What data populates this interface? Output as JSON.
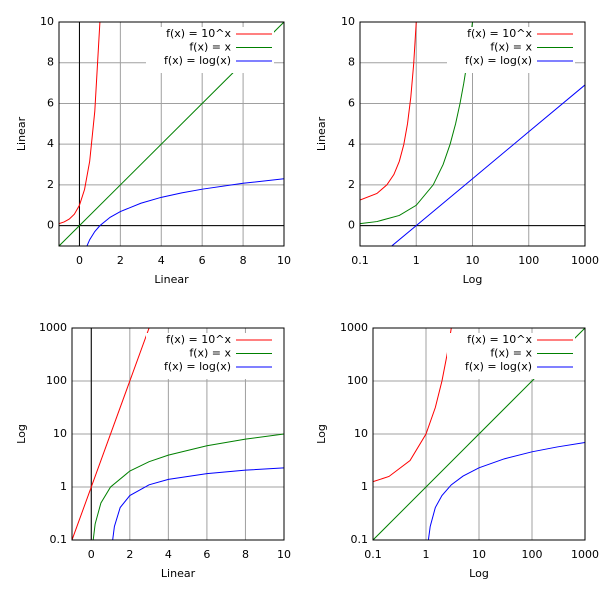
{
  "chart_data": [
    {
      "type": "line",
      "xlabel": "Linear",
      "ylabel": "Linear",
      "xscale": "linear",
      "yscale": "linear",
      "xlim": [
        -1,
        10
      ],
      "ylim": [
        -1,
        10
      ],
      "xticks": [
        0,
        2,
        4,
        6,
        8,
        10
      ],
      "yticks": [
        0,
        2,
        4,
        6,
        8,
        10
      ],
      "grid": true,
      "legend": "upper right",
      "series": [
        {
          "name": "f(x) = 10^x",
          "color": "#ff0000",
          "x": [
            -1,
            -0.75,
            -0.5,
            -0.25,
            0,
            0.25,
            0.5,
            0.75,
            1
          ],
          "values": [
            0.1,
            0.18,
            0.32,
            0.56,
            1,
            1.78,
            3.16,
            5.62,
            10
          ]
        },
        {
          "name": "f(x) = x",
          "color": "#008000",
          "x": [
            -1,
            10
          ],
          "values": [
            -1,
            10
          ]
        },
        {
          "name": "f(x) = log(x)",
          "color": "#0000ff",
          "x": [
            0.37,
            0.5,
            0.75,
            1,
            1.5,
            2,
            3,
            4,
            5,
            6,
            8,
            10
          ],
          "values": [
            -0.99,
            -0.69,
            -0.29,
            0,
            0.41,
            0.69,
            1.1,
            1.39,
            1.61,
            1.79,
            2.08,
            2.3
          ]
        }
      ]
    },
    {
      "type": "line",
      "xlabel": "Log",
      "ylabel": "Linear",
      "xscale": "log",
      "yscale": "linear",
      "xlim": [
        0.1,
        1000
      ],
      "ylim": [
        -1,
        10
      ],
      "xticks": [
        0.1,
        1,
        10,
        100,
        1000
      ],
      "yticks": [
        0,
        2,
        4,
        6,
        8,
        10
      ],
      "grid": true,
      "legend": "upper right",
      "series": [
        {
          "name": "f(x) = 10^x",
          "color": "#ff0000",
          "x": [
            0.1,
            0.2,
            0.3,
            0.4,
            0.5,
            0.6,
            0.7,
            0.8,
            0.9,
            1
          ],
          "values": [
            1.26,
            1.58,
            2,
            2.51,
            3.16,
            3.98,
            5.01,
            6.31,
            7.94,
            10
          ]
        },
        {
          "name": "f(x) = x",
          "color": "#008000",
          "x": [
            0.1,
            0.2,
            0.5,
            1,
            2,
            3,
            4,
            5,
            6,
            7,
            8,
            9,
            10
          ],
          "values": [
            0.1,
            0.2,
            0.5,
            1,
            2,
            3,
            4,
            5,
            6,
            7,
            8,
            9,
            10
          ]
        },
        {
          "name": "f(x) = log(x)",
          "color": "#0000ff",
          "x": [
            0.37,
            1,
            10,
            100,
            1000
          ],
          "values": [
            -0.99,
            0,
            2.3,
            4.61,
            6.91
          ]
        }
      ]
    },
    {
      "type": "line",
      "xlabel": "Linear",
      "ylabel": "Log",
      "xscale": "linear",
      "yscale": "log",
      "xlim": [
        -1,
        10
      ],
      "ylim": [
        0.1,
        1000
      ],
      "xticks": [
        0,
        2,
        4,
        6,
        8,
        10
      ],
      "yticks": [
        0.1,
        1,
        10,
        100,
        1000
      ],
      "grid": true,
      "legend": "upper right",
      "series": [
        {
          "name": "f(x) = 10^x",
          "color": "#ff0000",
          "x": [
            -1,
            3
          ],
          "values": [
            0.1,
            1000
          ]
        },
        {
          "name": "f(x) = x",
          "color": "#008000",
          "x": [
            0.1,
            0.2,
            0.5,
            1,
            2,
            3,
            4,
            6,
            8,
            10
          ],
          "values": [
            0.1,
            0.2,
            0.5,
            1,
            2,
            3,
            4,
            6,
            8,
            10
          ]
        },
        {
          "name": "f(x) = log(x)",
          "color": "#0000ff",
          "x": [
            1.11,
            1.2,
            1.5,
            2,
            3,
            4,
            6,
            8,
            10
          ],
          "values": [
            0.1,
            0.18,
            0.41,
            0.69,
            1.1,
            1.39,
            1.79,
            2.08,
            2.3
          ]
        }
      ]
    },
    {
      "type": "line",
      "xlabel": "Log",
      "ylabel": "Log",
      "xscale": "log",
      "yscale": "log",
      "xlim": [
        0.1,
        1000
      ],
      "ylim": [
        0.1,
        1000
      ],
      "xticks": [
        0.1,
        1,
        10,
        100,
        1000
      ],
      "yticks": [
        0.1,
        1,
        10,
        100,
        1000
      ],
      "grid": true,
      "legend": "upper right",
      "series": [
        {
          "name": "f(x) = 10^x",
          "color": "#ff0000",
          "x": [
            0.1,
            0.2,
            0.5,
            1,
            1.5,
            2,
            2.5,
            3
          ],
          "values": [
            1.26,
            1.58,
            3.16,
            10,
            31.6,
            100,
            316,
            1000
          ]
        },
        {
          "name": "f(x) = x",
          "color": "#008000",
          "x": [
            0.1,
            1000
          ],
          "values": [
            0.1,
            1000
          ]
        },
        {
          "name": "f(x) = log(x)",
          "color": "#0000ff",
          "x": [
            1.11,
            1.2,
            1.5,
            2,
            3,
            5,
            10,
            30,
            100,
            300,
            1000
          ],
          "values": [
            0.1,
            0.18,
            0.41,
            0.69,
            1.1,
            1.61,
            2.3,
            3.4,
            4.61,
            5.7,
            6.91
          ]
        }
      ]
    }
  ]
}
